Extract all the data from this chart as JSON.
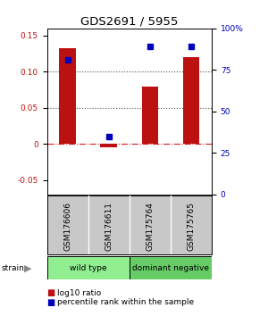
{
  "title": "GDS2691 / 5955",
  "samples": [
    "GSM176606",
    "GSM176611",
    "GSM175764",
    "GSM175765"
  ],
  "log10_ratio": [
    0.133,
    -0.005,
    0.08,
    0.12
  ],
  "percentile_rank_pct": [
    81,
    35,
    89,
    89
  ],
  "groups": [
    {
      "label": "wild type",
      "samples": [
        0,
        1
      ],
      "color": "#90ee90"
    },
    {
      "label": "dominant negative",
      "samples": [
        2,
        3
      ],
      "color": "#66cc66"
    }
  ],
  "ylim_left": [
    -0.07,
    0.16
  ],
  "ylim_right": [
    0,
    100
  ],
  "yticks_left": [
    -0.05,
    0,
    0.05,
    0.1,
    0.15
  ],
  "yticks_right": [
    0,
    25,
    50,
    75,
    100
  ],
  "bar_color": "#bb1111",
  "dot_color": "#0000bb",
  "hline_color_dashed": "#cc2222",
  "dotted_line_color": "#555555",
  "bg_color": "#ffffff",
  "label_fontsize": 6.5,
  "title_fontsize": 9.5,
  "tick_fontsize": 6.5,
  "bar_width": 0.4,
  "sample_bg": "#c8c8c8",
  "strain_arrow_color": "#888888"
}
